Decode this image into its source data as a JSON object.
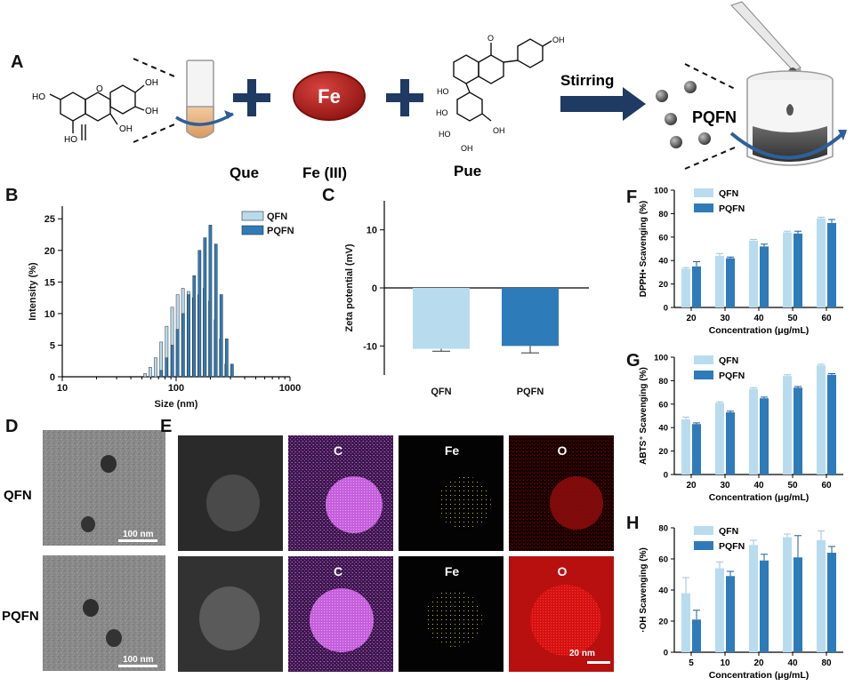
{
  "colors": {
    "qfn": "#b8dcee",
    "pqfn": "#2e7bb9",
    "arrow": "#1f3a63",
    "fe_circle": "#b8231f"
  },
  "panel_a": {
    "letter": "A",
    "fe_text": "Fe",
    "que_label": "Que",
    "fe_label": "Fe (III)",
    "pue_label": "Pue",
    "stirring": "Stirring",
    "pqfn": "PQFN",
    "chem_labels": {
      "ho": "HO",
      "oh": "OH",
      "o": "O"
    }
  },
  "panel_b": {
    "letter": "B",
    "xlabel": "Size (nm)",
    "ylabel": "Intensity (%)",
    "xticks": [
      "10",
      "100",
      "1000"
    ],
    "yticks": [
      "0",
      "5",
      "10",
      "15",
      "20",
      "25"
    ],
    "legend": [
      "QFN",
      "PQFN"
    ]
  },
  "panel_c": {
    "letter": "C",
    "ylabel": "Zeta potential (mV)",
    "yticks": [
      "10",
      "0",
      "-10"
    ],
    "categories": [
      "QFN",
      "PQFN"
    ]
  },
  "panel_d": {
    "letter": "D",
    "row1": "QFN",
    "row2": "PQFN",
    "scale1": "100 nm",
    "scale2": "100 nm"
  },
  "panel_e": {
    "letter": "E",
    "maps": [
      "C",
      "Fe",
      "O"
    ],
    "scale": "20 nm"
  },
  "panel_f": {
    "letter": "F",
    "ylabel": "DPPH• Scavenging (%)",
    "xlabel": "Concentration (μg/mL)",
    "legend": [
      "QFN",
      "PQFN"
    ],
    "yticks": [
      "0",
      "20",
      "40",
      "60",
      "80",
      "100"
    ]
  },
  "panel_g": {
    "letter": "G",
    "ylabel": "ABTS⁺ Scavenging (%)",
    "xlabel": "Concentration (μg/mL)",
    "legend": [
      "QFN",
      "PQFN"
    ],
    "yticks": [
      "0",
      "20",
      "40",
      "60",
      "80",
      "100"
    ]
  },
  "panel_h": {
    "letter": "H",
    "ylabel": "·OH Scavenging (%)",
    "xlabel": "Concentration (μg/mL)",
    "legend": [
      "QFN",
      "PQFN"
    ],
    "yticks": [
      "0",
      "20",
      "40",
      "60",
      "80"
    ]
  },
  "chart_data": [
    {
      "type": "bar",
      "panel": "B",
      "xlabel": "Size (nm)",
      "ylabel": "Intensity (%)",
      "xscale": "log",
      "xlim": [
        10,
        1000
      ],
      "ylim": [
        0,
        27
      ],
      "series": [
        {
          "name": "QFN",
          "x": [
            55,
            61,
            68,
            76,
            85,
            95,
            106,
            118,
            132,
            147,
            164,
            183,
            204,
            228,
            254,
            283
          ],
          "values": [
            0.5,
            1.5,
            3.0,
            5.5,
            8.0,
            11.0,
            13.0,
            14.0,
            13.5,
            12.5,
            13.0,
            14.0,
            12.0,
            9.0,
            6.0,
            2.0
          ]
        },
        {
          "name": "PQFN",
          "x": [
            72,
            80,
            90,
            100,
            112,
            125,
            140,
            156,
            174,
            194,
            217,
            242,
            270,
            301
          ],
          "values": [
            1.0,
            3.0,
            5.0,
            7.5,
            10.0,
            13.0,
            16.0,
            20.0,
            22.0,
            24.0,
            21.0,
            13.0,
            6.0,
            2.0
          ]
        }
      ]
    },
    {
      "type": "bar",
      "panel": "C",
      "ylabel": "Zeta potential (mV)",
      "categories": [
        "QFN",
        "PQFN"
      ],
      "values": [
        -10.5,
        -10.0
      ],
      "errors": [
        0.4,
        1.2
      ],
      "ylim": [
        -15,
        15
      ]
    },
    {
      "type": "bar",
      "panel": "F",
      "ylabel": "DPPH• Scavenging (%)",
      "xlabel": "Concentration (μg/mL)",
      "categories": [
        "20",
        "30",
        "40",
        "50",
        "60"
      ],
      "ylim": [
        0,
        100
      ],
      "series": [
        {
          "name": "QFN",
          "values": [
            33,
            44,
            57,
            64,
            76
          ],
          "errors": [
            1.0,
            2.0,
            1.0,
            1.0,
            1.0
          ]
        },
        {
          "name": "PQFN",
          "values": [
            35,
            42,
            52,
            63,
            72
          ],
          "errors": [
            4.0,
            1.0,
            2.0,
            2.0,
            3.0
          ]
        }
      ]
    },
    {
      "type": "bar",
      "panel": "G",
      "ylabel": "ABTS⁺ Scavenging (%)",
      "xlabel": "Concentration (μg/mL)",
      "categories": [
        "20",
        "30",
        "40",
        "50",
        "60"
      ],
      "ylim": [
        0,
        100
      ],
      "series": [
        {
          "name": "QFN",
          "values": [
            47,
            61,
            73,
            84,
            93
          ],
          "errors": [
            2.0,
            1.0,
            1.0,
            1.0,
            1.0
          ]
        },
        {
          "name": "PQFN",
          "values": [
            43,
            53,
            65,
            74,
            85
          ],
          "errors": [
            1.0,
            1.0,
            1.0,
            1.0,
            1.0
          ]
        }
      ]
    },
    {
      "type": "bar",
      "panel": "H",
      "ylabel": "·OH Scavenging (%)",
      "xlabel": "Concentration (μg/mL)",
      "categories": [
        "5",
        "10",
        "20",
        "40",
        "80"
      ],
      "ylim": [
        0,
        80
      ],
      "series": [
        {
          "name": "QFN",
          "values": [
            38,
            54,
            69,
            74,
            72
          ],
          "errors": [
            10.0,
            4.0,
            3.0,
            2.0,
            6.0
          ]
        },
        {
          "name": "PQFN",
          "values": [
            21,
            49,
            59,
            61,
            64
          ],
          "errors": [
            6.0,
            3.0,
            4.0,
            14.0,
            4.0
          ]
        }
      ]
    }
  ]
}
